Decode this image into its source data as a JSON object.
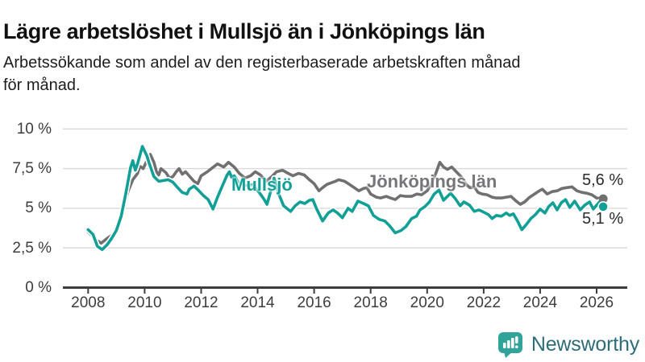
{
  "header": {
    "title": "Lägre arbetslöshet i Mullsjö än i Jönköpings län",
    "subtitle_lines": [
      "Arbetssökande som andel av den registerbaserade arbetskraften månad",
      "för månad."
    ]
  },
  "chart_data": {
    "type": "line",
    "title": "Lägre arbetslöshet i Mullsjö än i Jönköpings län",
    "ylabel": "",
    "xlabel": "",
    "ylim": [
      0,
      10
    ],
    "xlim": [
      2007.6,
      2027.1
    ],
    "grid": "horizontal",
    "legend_position": "inline-labels",
    "yticks": {
      "values": [
        0,
        2.5,
        5,
        7.5,
        10
      ],
      "labels": [
        "0 %",
        "2,5 %",
        "5 %",
        "7,5 %",
        "10 %"
      ]
    },
    "xticks": {
      "values": [
        2008,
        2010,
        2012,
        2014,
        2016,
        2018,
        2020,
        2022,
        2024,
        2026
      ],
      "labels": [
        "2008",
        "2010",
        "2012",
        "2014",
        "2016",
        "2018",
        "2020",
        "2022",
        "2024",
        "2026"
      ]
    },
    "series": [
      {
        "name": "Jönköpings län",
        "color": "#707070",
        "end_label": "5,6 %",
        "end_value": 5.6,
        "points": [
          [
            2008.0,
            3.5
          ],
          [
            2008.17,
            3.2
          ],
          [
            2008.33,
            2.95
          ],
          [
            2008.46,
            2.8
          ],
          [
            2008.67,
            3.1
          ],
          [
            2008.92,
            3.4
          ],
          [
            2009.08,
            4.1
          ],
          [
            2009.25,
            5.0
          ],
          [
            2009.42,
            6.1
          ],
          [
            2009.58,
            6.8
          ],
          [
            2009.75,
            7.2
          ],
          [
            2009.83,
            7.65
          ],
          [
            2009.95,
            7.5
          ],
          [
            2010.08,
            8.0
          ],
          [
            2010.2,
            8.4
          ],
          [
            2010.33,
            7.9
          ],
          [
            2010.42,
            7.3
          ],
          [
            2010.5,
            7.1
          ],
          [
            2010.58,
            7.5
          ],
          [
            2010.75,
            7.25
          ],
          [
            2010.88,
            6.9
          ],
          [
            2011.0,
            7.0
          ],
          [
            2011.12,
            7.3
          ],
          [
            2011.22,
            7.5
          ],
          [
            2011.33,
            7.15
          ],
          [
            2011.45,
            7.3
          ],
          [
            2011.6,
            7.0
          ],
          [
            2011.75,
            6.7
          ],
          [
            2011.88,
            6.55
          ],
          [
            2012.0,
            7.05
          ],
          [
            2012.22,
            7.3
          ],
          [
            2012.4,
            7.55
          ],
          [
            2012.58,
            7.8
          ],
          [
            2012.8,
            7.6
          ],
          [
            2012.97,
            7.9
          ],
          [
            2013.17,
            7.6
          ],
          [
            2013.35,
            7.2
          ],
          [
            2013.55,
            6.9
          ],
          [
            2013.75,
            7.05
          ],
          [
            2013.92,
            7.3
          ],
          [
            2014.1,
            7.1
          ],
          [
            2014.3,
            6.7
          ],
          [
            2014.5,
            7.0
          ],
          [
            2014.67,
            7.3
          ],
          [
            2014.88,
            7.4
          ],
          [
            2015.08,
            7.2
          ],
          [
            2015.25,
            7.05
          ],
          [
            2015.45,
            7.2
          ],
          [
            2015.65,
            7.1
          ],
          [
            2015.83,
            6.8
          ],
          [
            2016.0,
            6.55
          ],
          [
            2016.17,
            6.1
          ],
          [
            2016.3,
            6.3
          ],
          [
            2016.45,
            6.5
          ],
          [
            2016.6,
            6.6
          ],
          [
            2016.75,
            6.7
          ],
          [
            2016.87,
            6.8
          ],
          [
            2017.08,
            6.7
          ],
          [
            2017.25,
            6.5
          ],
          [
            2017.42,
            6.3
          ],
          [
            2017.58,
            6.1
          ],
          [
            2017.75,
            6.25
          ],
          [
            2017.87,
            6.3
          ],
          [
            2018.0,
            5.9
          ],
          [
            2018.2,
            5.7
          ],
          [
            2018.35,
            5.65
          ],
          [
            2018.55,
            5.75
          ],
          [
            2018.7,
            5.65
          ],
          [
            2018.87,
            5.55
          ],
          [
            2019.05,
            5.8
          ],
          [
            2019.25,
            5.75
          ],
          [
            2019.45,
            5.75
          ],
          [
            2019.63,
            5.9
          ],
          [
            2019.8,
            5.85
          ],
          [
            2020.0,
            6.1
          ],
          [
            2020.17,
            6.6
          ],
          [
            2020.33,
            7.3
          ],
          [
            2020.45,
            7.9
          ],
          [
            2020.58,
            7.6
          ],
          [
            2020.72,
            7.45
          ],
          [
            2020.87,
            7.6
          ],
          [
            2021.03,
            7.3
          ],
          [
            2021.2,
            7.0
          ],
          [
            2021.38,
            6.5
          ],
          [
            2021.52,
            6.3
          ],
          [
            2021.67,
            6.35
          ],
          [
            2021.8,
            6.0
          ],
          [
            2021.95,
            5.9
          ],
          [
            2022.12,
            5.85
          ],
          [
            2022.3,
            5.7
          ],
          [
            2022.45,
            5.65
          ],
          [
            2022.63,
            5.65
          ],
          [
            2022.8,
            5.7
          ],
          [
            2022.97,
            5.75
          ],
          [
            2023.15,
            5.45
          ],
          [
            2023.3,
            5.25
          ],
          [
            2023.45,
            5.4
          ],
          [
            2023.63,
            5.7
          ],
          [
            2023.8,
            5.9
          ],
          [
            2023.97,
            6.1
          ],
          [
            2024.08,
            6.2
          ],
          [
            2024.25,
            5.9
          ],
          [
            2024.42,
            6.05
          ],
          [
            2024.6,
            6.1
          ],
          [
            2024.77,
            6.25
          ],
          [
            2024.93,
            6.3
          ],
          [
            2025.13,
            6.35
          ],
          [
            2025.3,
            6.1
          ],
          [
            2025.48,
            6.0
          ],
          [
            2025.65,
            5.95
          ],
          [
            2025.83,
            5.85
          ],
          [
            2026.0,
            5.65
          ],
          [
            2026.23,
            5.6
          ]
        ]
      },
      {
        "name": "Mullsjö",
        "color": "#12a096",
        "end_label": "5,1 %",
        "end_value": 5.1,
        "points": [
          [
            2008.0,
            3.65
          ],
          [
            2008.17,
            3.35
          ],
          [
            2008.33,
            2.6
          ],
          [
            2008.5,
            2.4
          ],
          [
            2008.67,
            2.7
          ],
          [
            2008.83,
            3.1
          ],
          [
            2009.0,
            3.6
          ],
          [
            2009.17,
            4.5
          ],
          [
            2009.33,
            5.9
          ],
          [
            2009.5,
            7.55
          ],
          [
            2009.58,
            8.0
          ],
          [
            2009.67,
            7.4
          ],
          [
            2009.75,
            7.8
          ],
          [
            2009.92,
            8.9
          ],
          [
            2010.08,
            8.3
          ],
          [
            2010.17,
            7.8
          ],
          [
            2010.33,
            7.0
          ],
          [
            2010.5,
            6.7
          ],
          [
            2010.67,
            6.75
          ],
          [
            2010.83,
            6.8
          ],
          [
            2011.0,
            6.65
          ],
          [
            2011.17,
            6.3
          ],
          [
            2011.33,
            6.0
          ],
          [
            2011.5,
            5.9
          ],
          [
            2011.58,
            6.2
          ],
          [
            2011.75,
            6.4
          ],
          [
            2011.92,
            6.1
          ],
          [
            2012.08,
            5.8
          ],
          [
            2012.25,
            5.55
          ],
          [
            2012.42,
            4.95
          ],
          [
            2012.58,
            5.7
          ],
          [
            2012.75,
            6.4
          ],
          [
            2012.92,
            7.1
          ],
          [
            2013.0,
            7.3
          ],
          [
            2013.08,
            6.95
          ],
          [
            2013.17,
            7.05
          ],
          [
            2013.33,
            6.6
          ],
          [
            2013.5,
            6.45
          ],
          [
            2013.67,
            6.45
          ],
          [
            2013.83,
            6.5
          ],
          [
            2013.92,
            6.3
          ],
          [
            2014.08,
            5.95
          ],
          [
            2014.25,
            5.5
          ],
          [
            2014.33,
            5.25
          ],
          [
            2014.5,
            6.3
          ],
          [
            2014.58,
            6.9
          ],
          [
            2014.75,
            5.9
          ],
          [
            2014.92,
            5.15
          ],
          [
            2015.17,
            4.8
          ],
          [
            2015.33,
            5.15
          ],
          [
            2015.5,
            5.4
          ],
          [
            2015.67,
            5.3
          ],
          [
            2015.83,
            5.5
          ],
          [
            2015.95,
            5.55
          ],
          [
            2016.08,
            5.0
          ],
          [
            2016.3,
            4.2
          ],
          [
            2016.5,
            4.7
          ],
          [
            2016.67,
            4.9
          ],
          [
            2016.83,
            4.7
          ],
          [
            2017.0,
            4.4
          ],
          [
            2017.2,
            5.0
          ],
          [
            2017.35,
            4.8
          ],
          [
            2017.55,
            5.45
          ],
          [
            2017.75,
            5.3
          ],
          [
            2017.92,
            5.15
          ],
          [
            2018.1,
            4.55
          ],
          [
            2018.3,
            4.3
          ],
          [
            2018.5,
            4.2
          ],
          [
            2018.67,
            3.9
          ],
          [
            2018.87,
            3.45
          ],
          [
            2019.08,
            3.6
          ],
          [
            2019.25,
            3.85
          ],
          [
            2019.45,
            4.35
          ],
          [
            2019.62,
            4.5
          ],
          [
            2019.75,
            4.9
          ],
          [
            2019.92,
            5.1
          ],
          [
            2020.08,
            5.4
          ],
          [
            2020.25,
            5.9
          ],
          [
            2020.42,
            6.15
          ],
          [
            2020.58,
            5.5
          ],
          [
            2020.83,
            5.95
          ],
          [
            2021.0,
            5.6
          ],
          [
            2021.17,
            5.15
          ],
          [
            2021.3,
            5.4
          ],
          [
            2021.5,
            5.2
          ],
          [
            2021.67,
            4.8
          ],
          [
            2021.83,
            4.9
          ],
          [
            2021.95,
            4.8
          ],
          [
            2022.17,
            4.6
          ],
          [
            2022.3,
            4.35
          ],
          [
            2022.45,
            4.55
          ],
          [
            2022.63,
            4.5
          ],
          [
            2022.8,
            4.7
          ],
          [
            2022.92,
            4.55
          ],
          [
            2023.05,
            4.65
          ],
          [
            2023.2,
            4.2
          ],
          [
            2023.35,
            3.65
          ],
          [
            2023.5,
            3.95
          ],
          [
            2023.67,
            4.35
          ],
          [
            2023.83,
            4.6
          ],
          [
            2024.0,
            4.95
          ],
          [
            2024.17,
            4.7
          ],
          [
            2024.3,
            5.1
          ],
          [
            2024.45,
            5.35
          ],
          [
            2024.6,
            4.9
          ],
          [
            2024.75,
            5.35
          ],
          [
            2024.9,
            5.55
          ],
          [
            2025.05,
            5.05
          ],
          [
            2025.22,
            5.45
          ],
          [
            2025.42,
            4.9
          ],
          [
            2025.58,
            5.2
          ],
          [
            2025.75,
            5.4
          ],
          [
            2025.88,
            4.95
          ],
          [
            2026.05,
            5.3
          ],
          [
            2026.15,
            5.5
          ],
          [
            2026.23,
            5.1
          ]
        ]
      }
    ]
  },
  "footer": {
    "brand": "Newsworthy"
  }
}
